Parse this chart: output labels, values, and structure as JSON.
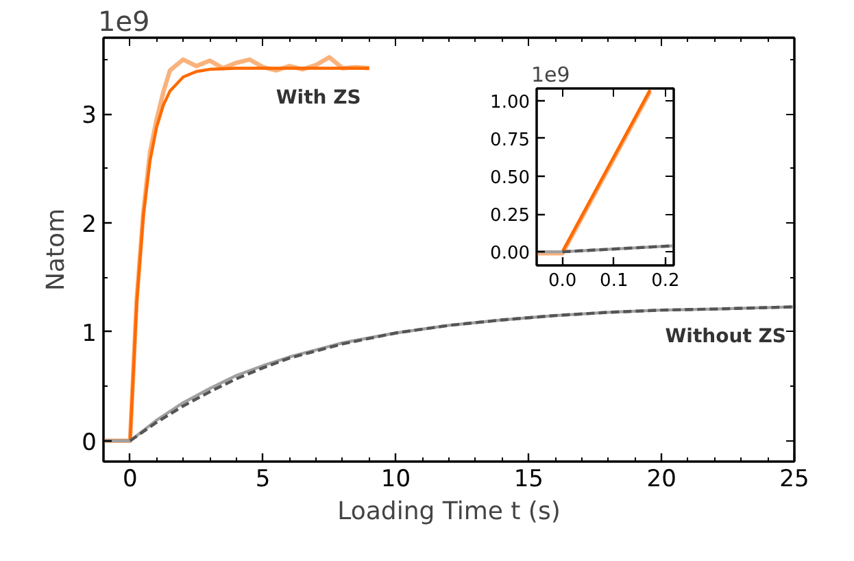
{
  "chart_data": [
    {
      "type": "line",
      "xlabel": "Loading Time t (s)",
      "ylabel": "Natom",
      "xlim": [
        -1,
        25
      ],
      "xticks": [
        0,
        5,
        10,
        15,
        20,
        25
      ],
      "ylim": [
        -0.19,
        3.7
      ],
      "yticks": [
        0,
        1,
        2,
        3
      ],
      "grid": false,
      "marker": "none",
      "annotations": [
        "1e9"
      ],
      "series": [
        {
          "color": "#f9b27c",
          "line_style": "solid",
          "x": [
            -1,
            -0.5,
            0,
            0.25,
            0.5,
            0.75,
            1,
            1.25,
            1.5,
            1.75,
            2,
            2.5,
            3,
            3.5,
            4,
            4.5,
            5,
            5.5,
            6,
            6.5,
            7,
            7.5,
            8,
            8.5,
            9
          ],
          "values": [
            0,
            0,
            0,
            1.3,
            2.1,
            2.65,
            2.95,
            3.2,
            3.4,
            3.45,
            3.5,
            3.44,
            3.49,
            3.42,
            3.47,
            3.5,
            3.43,
            3.4,
            3.44,
            3.41,
            3.45,
            3.52,
            3.42,
            3.43,
            3.42
          ]
        },
        {
          "name": "With ZS",
          "color": "#ff6a00",
          "line_style": "solid",
          "x": [
            -1,
            0,
            0.25,
            0.5,
            0.75,
            1,
            1.25,
            1.5,
            2,
            2.5,
            3,
            4,
            5,
            6,
            7,
            8,
            9
          ],
          "values": [
            0,
            0,
            1.27,
            2.07,
            2.57,
            2.88,
            3.08,
            3.21,
            3.34,
            3.39,
            3.41,
            3.42,
            3.42,
            3.42,
            3.42,
            3.42,
            3.42
          ]
        },
        {
          "color": "#a0a0a0",
          "line_style": "solid",
          "x": [
            -1,
            0,
            1,
            2,
            3,
            4,
            5,
            6,
            8,
            10,
            12,
            14,
            16,
            18,
            20,
            22,
            25
          ],
          "values": [
            0,
            0,
            0.19,
            0.35,
            0.48,
            0.6,
            0.69,
            0.77,
            0.9,
            0.99,
            1.06,
            1.11,
            1.15,
            1.18,
            1.2,
            1.21,
            1.23
          ]
        },
        {
          "name": "Without ZS",
          "color": "#555555",
          "line_style": "dashed",
          "x": [
            0,
            1,
            2,
            3,
            4,
            5,
            6,
            8,
            10,
            12,
            14,
            16,
            18,
            20,
            22,
            25
          ],
          "values": [
            0,
            0.17,
            0.32,
            0.45,
            0.57,
            0.67,
            0.76,
            0.89,
            0.99,
            1.06,
            1.11,
            1.15,
            1.18,
            1.2,
            1.21,
            1.23
          ]
        }
      ]
    },
    {
      "type": "line",
      "xlim": [
        -0.05,
        0.216
      ],
      "xticks": [
        {
          "value": 0,
          "label": "0.0"
        },
        {
          "value": 0.1,
          "label": "0.1"
        },
        {
          "value": 0.2,
          "label": "0.2"
        }
      ],
      "ylim": [
        -0.09,
        1.08
      ],
      "yticks": [
        {
          "value": 0,
          "label": "0.00"
        },
        {
          "value": 0.25,
          "label": "0.25"
        },
        {
          "value": 0.5,
          "label": "0.50"
        },
        {
          "value": 0.75,
          "label": "0.75"
        },
        {
          "value": 1,
          "label": "1.00"
        }
      ],
      "grid": false,
      "marker": "none",
      "annotations": [
        "1e9"
      ],
      "series": [
        {
          "color": "#f9b27c",
          "line_style": "solid",
          "x": [
            -0.05,
            0,
            0.17
          ],
          "values": [
            -0.01,
            -0.01,
            1.06
          ]
        },
        {
          "color": "#ff6a00",
          "line_style": "solid",
          "x": [
            0,
            0.17
          ],
          "values": [
            0,
            1.07
          ]
        },
        {
          "color": "#a0a0a0",
          "line_style": "solid",
          "x": [
            -0.05,
            0,
            0.216
          ],
          "values": [
            0,
            0,
            0.04
          ]
        },
        {
          "color": "#555555",
          "line_style": "dashed",
          "x": [
            0,
            0.216
          ],
          "values": [
            0,
            0.04
          ]
        }
      ]
    }
  ]
}
